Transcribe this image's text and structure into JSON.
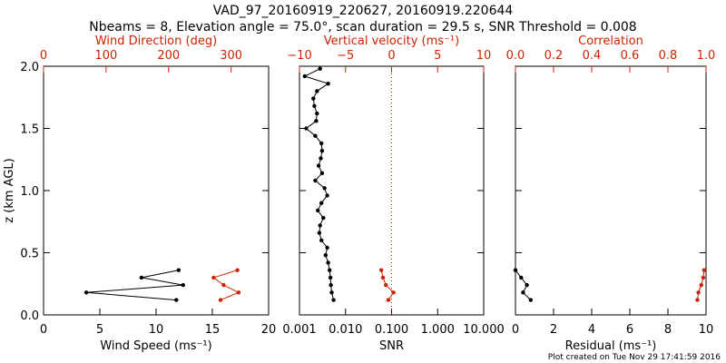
{
  "title_line1": "VAD_97_20160919_220627, 20160919.220644",
  "title_line2": "Nbeams = 8, Elevation angle = 75.0°, scan duration = 29.5 s, SNR Threshold = 0.008",
  "footer": "Plot created on Tue Nov 29 17:41:59 2016",
  "colors": {
    "primary": "#000000",
    "secondary": "#cc2200"
  },
  "chart_data": [
    {
      "type": "line",
      "ylabel": "z (km AGL)",
      "ylim": [
        0,
        2.0
      ],
      "yticks": [
        "0.0",
        "0.5",
        "1.0",
        "1.5",
        "2.0"
      ],
      "bottom_axis": {
        "label": "Wind Speed (ms⁻¹)",
        "lim": [
          0,
          20
        ],
        "scale": "linear",
        "ticks": [
          "0",
          "5",
          "10",
          "15",
          "20"
        ]
      },
      "top_axis": {
        "label": "Wind Direction (deg)",
        "lim": [
          0,
          360
        ],
        "scale": "linear",
        "ticks": [
          "0",
          "100",
          "200",
          "300"
        ]
      },
      "series": [
        {
          "axis": "bottom",
          "color": "#000000",
          "x": [
            11.8,
            3.8,
            12.4,
            8.7,
            12.0
          ],
          "y": [
            0.12,
            0.18,
            0.24,
            0.3,
            0.36
          ]
        },
        {
          "axis": "top",
          "color": "#cc2200",
          "x": [
            283,
            312,
            288,
            272,
            310
          ],
          "y": [
            0.12,
            0.18,
            0.24,
            0.3,
            0.36
          ]
        }
      ]
    },
    {
      "type": "line",
      "ylim": [
        0,
        2.0
      ],
      "bottom_axis": {
        "label": "SNR",
        "lim": [
          0.001,
          10
        ],
        "scale": "log",
        "ticks": [
          "0.001",
          "0.010",
          "0.100",
          "1.000",
          "10.000"
        ]
      },
      "top_axis": {
        "label": "Vertical velocity (ms⁻¹)",
        "lim": [
          -10,
          10
        ],
        "scale": "linear",
        "ticks": [
          "−10",
          "−5",
          "0",
          "5",
          "10"
        ],
        "zero_reference_line": true
      },
      "series": [
        {
          "axis": "bottom",
          "color": "#000000",
          "x": [
            0.0055,
            0.005,
            0.0048,
            0.0047,
            0.0045,
            0.0042,
            0.0037,
            0.004,
            0.003,
            0.0027,
            0.0028,
            0.0033,
            0.0025,
            0.003,
            0.004,
            0.0035,
            0.0022,
            0.0031,
            0.0026,
            0.0029,
            0.0031,
            0.003,
            0.0022,
            0.0014,
            0.0023,
            0.0024,
            0.0021,
            0.002,
            0.0024,
            0.0042,
            0.0013,
            0.0028
          ],
          "y": [
            0.12,
            0.18,
            0.24,
            0.3,
            0.36,
            0.42,
            0.48,
            0.54,
            0.6,
            0.66,
            0.72,
            0.78,
            0.84,
            0.9,
            0.96,
            1.02,
            1.08,
            1.14,
            1.2,
            1.26,
            1.32,
            1.38,
            1.44,
            1.5,
            1.56,
            1.62,
            1.68,
            1.74,
            1.8,
            1.86,
            1.92,
            1.98
          ]
        },
        {
          "axis": "bottom",
          "color": "#cc2200",
          "x": [
            0.085,
            0.11,
            0.075,
            0.065,
            0.06
          ],
          "y": [
            0.12,
            0.18,
            0.24,
            0.3,
            0.36
          ]
        }
      ]
    },
    {
      "type": "line",
      "ylim": [
        0,
        2.0
      ],
      "bottom_axis": {
        "label": "Residual (ms⁻¹)",
        "lim": [
          0,
          10
        ],
        "scale": "linear",
        "ticks": [
          "0",
          "2",
          "4",
          "6",
          "8",
          "10"
        ]
      },
      "top_axis": {
        "label": "Correlation",
        "lim": [
          0.0,
          1.0
        ],
        "scale": "linear",
        "ticks": [
          "0.0",
          "0.2",
          "0.4",
          "0.6",
          "0.8",
          "1.0"
        ]
      },
      "series": [
        {
          "axis": "bottom",
          "color": "#000000",
          "x": [
            0.8,
            0.4,
            0.6,
            0.3,
            0.0
          ],
          "y": [
            0.12,
            0.18,
            0.24,
            0.3,
            0.36
          ]
        },
        {
          "axis": "top",
          "color": "#cc2200",
          "x": [
            0.955,
            0.96,
            0.975,
            0.985,
            0.99
          ],
          "y": [
            0.12,
            0.18,
            0.24,
            0.3,
            0.36
          ]
        }
      ]
    }
  ]
}
